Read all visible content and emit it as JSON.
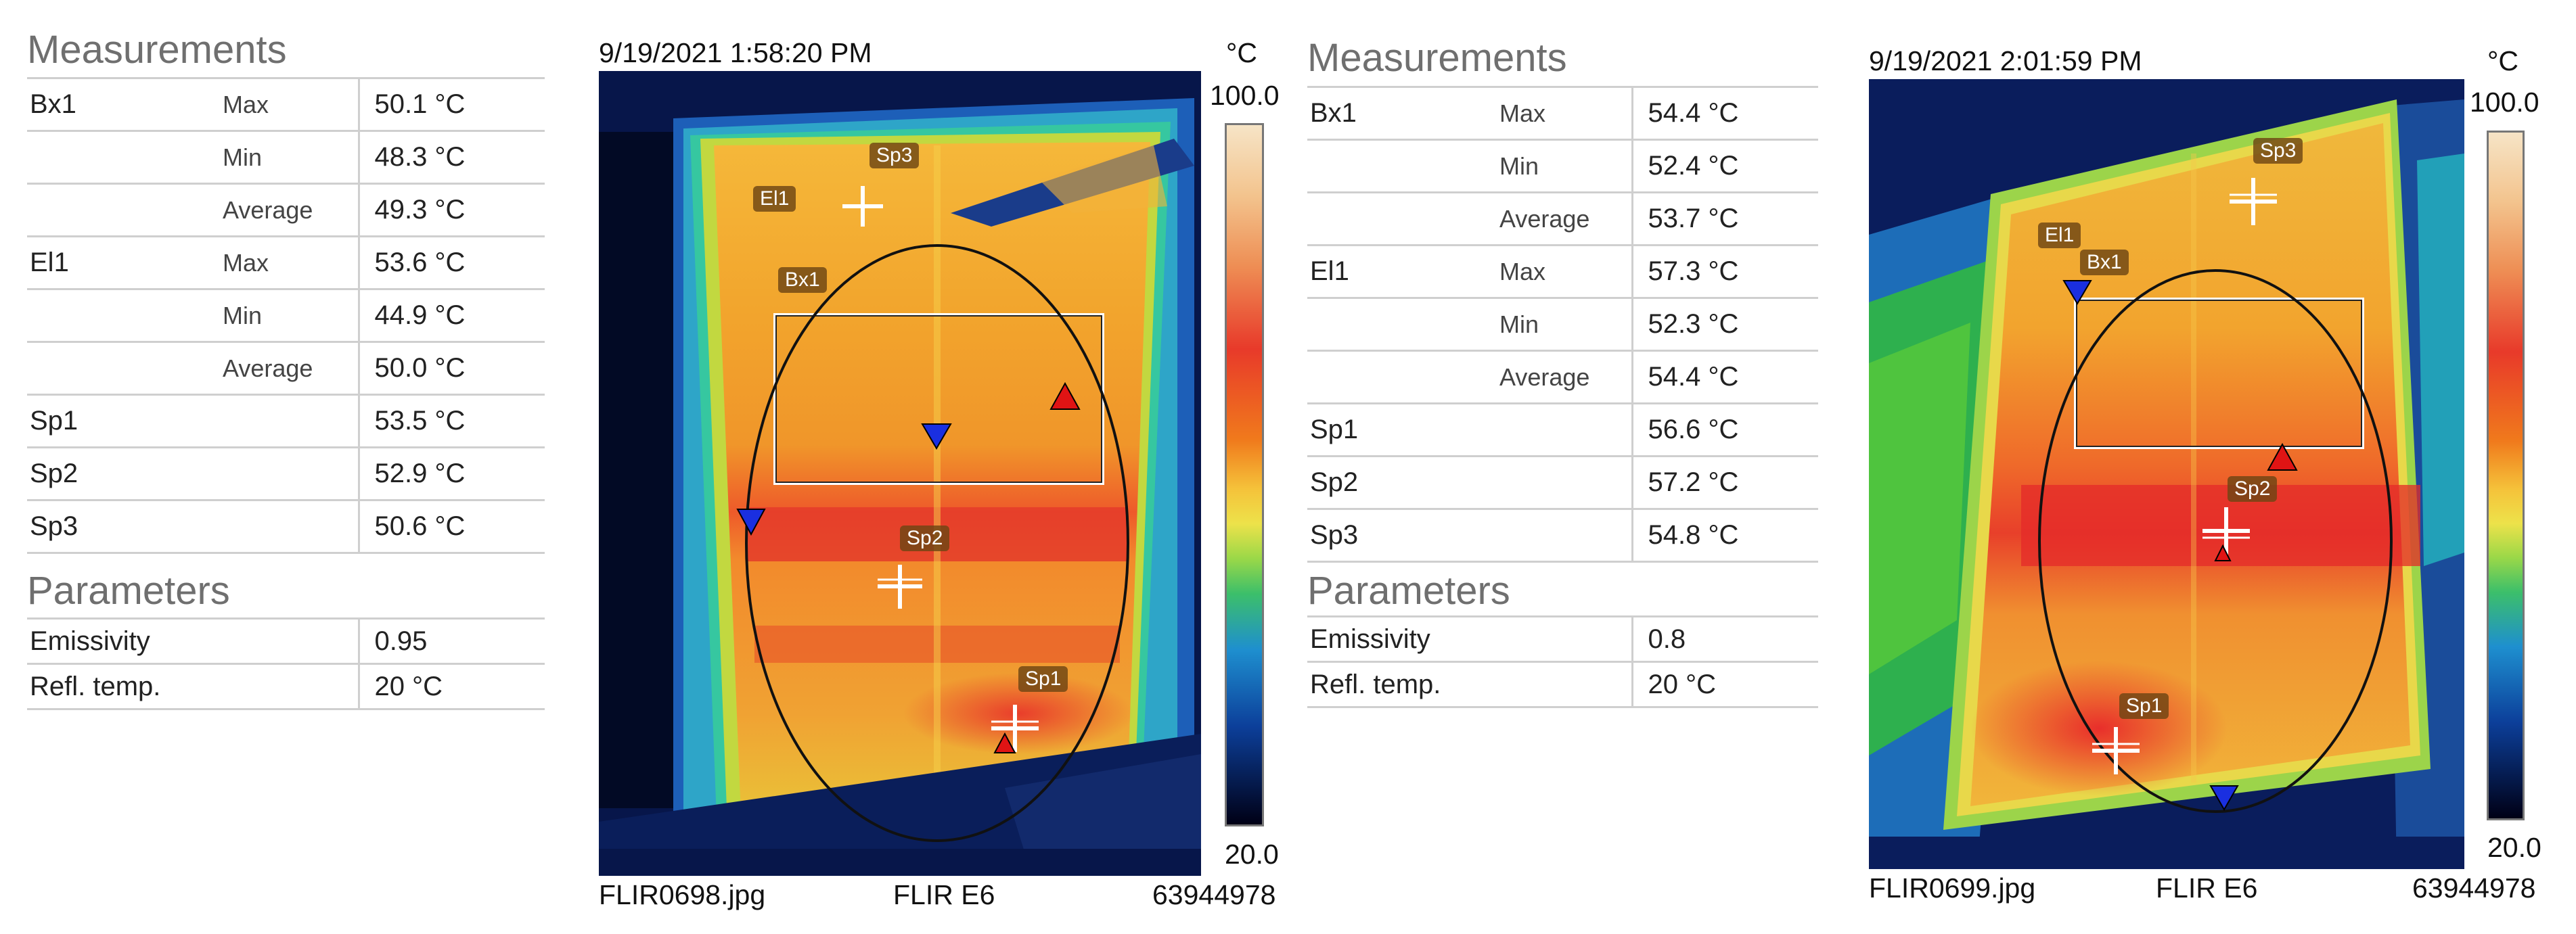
{
  "left": {
    "measurements_title": "Measurements",
    "rows": [
      {
        "label": "Bx1",
        "sub": "Max",
        "value": "50.1 °C"
      },
      {
        "label": "",
        "sub": "Min",
        "value": "48.3 °C"
      },
      {
        "label": "",
        "sub": "Average",
        "value": "49.3 °C"
      },
      {
        "label": "El1",
        "sub": "Max",
        "value": "53.6 °C"
      },
      {
        "label": "",
        "sub": "Min",
        "value": "44.9 °C"
      },
      {
        "label": "",
        "sub": "Average",
        "value": "50.0 °C"
      },
      {
        "label": "Sp1",
        "sub": "",
        "value": "53.5 °C"
      },
      {
        "label": "Sp2",
        "sub": "",
        "value": "52.9 °C"
      },
      {
        "label": "Sp3",
        "sub": "",
        "value": "50.6 °C"
      }
    ],
    "parameters_title": "Parameters",
    "params": [
      {
        "label": "Emissivity",
        "value": "0.95"
      },
      {
        "label": "Refl. temp.",
        "value": "20 °C"
      }
    ],
    "image": {
      "timestamp": "9/19/2021 1:58:20 PM",
      "filename": "FLIR0698.jpg",
      "camera": "FLIR E6",
      "serial": "63944978",
      "unit": "°C",
      "scale_max": "100.0",
      "scale_min": "20.0",
      "tags": {
        "sp3": "Sp3",
        "el1": "El1",
        "bx1": "Bx1",
        "sp2": "Sp2",
        "sp1": "Sp1"
      }
    }
  },
  "right": {
    "measurements_title": "Measurements",
    "rows": [
      {
        "label": "Bx1",
        "sub": "Max",
        "value": "54.4 °C"
      },
      {
        "label": "",
        "sub": "Min",
        "value": "52.4 °C"
      },
      {
        "label": "",
        "sub": "Average",
        "value": "53.7 °C"
      },
      {
        "label": "El1",
        "sub": "Max",
        "value": "57.3 °C"
      },
      {
        "label": "",
        "sub": "Min",
        "value": "52.3 °C"
      },
      {
        "label": "",
        "sub": "Average",
        "value": "54.4 °C"
      },
      {
        "label": "Sp1",
        "sub": "",
        "value": "56.6 °C"
      },
      {
        "label": "Sp2",
        "sub": "",
        "value": "57.2 °C"
      },
      {
        "label": "Sp3",
        "sub": "",
        "value": "54.8 °C"
      }
    ],
    "parameters_title": "Parameters",
    "params": [
      {
        "label": "Emissivity",
        "value": "0.8"
      },
      {
        "label": "Refl. temp.",
        "value": "20 °C"
      }
    ],
    "image": {
      "timestamp": "9/19/2021 2:01:59 PM",
      "filename": "FLIR0699.jpg",
      "camera": "FLIR E6",
      "serial": "63944978",
      "unit": "°C",
      "scale_max": "100.0",
      "scale_min": "20.0",
      "tags": {
        "sp3": "Sp3",
        "el1": "El1",
        "bx1": "Bx1",
        "sp2": "Sp2",
        "sp1": "Sp1"
      }
    }
  },
  "colors": {
    "scale": [
      "#f6e4c6",
      "#f3c48e",
      "#ee8f55",
      "#e83a2a",
      "#f07a1c",
      "#f5c23a",
      "#ede24a",
      "#9ad848",
      "#3cbf6a",
      "#1e8fcf",
      "#0c3f9a",
      "#000015"
    ],
    "marker_cold": "#1a2fe0",
    "marker_hot": "#e01414"
  }
}
